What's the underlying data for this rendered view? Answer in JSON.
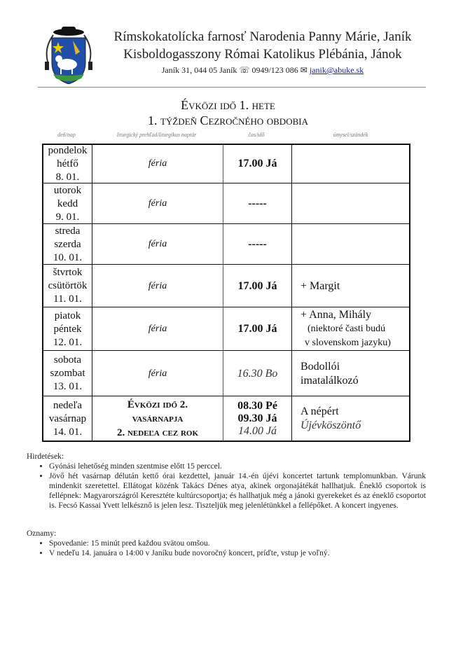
{
  "header": {
    "line1": "Rímskokatolícka farnosť Narodenia Panny Márie, Janík",
    "line2": "Kisboldogasszony Római Katolikus Plébánia, Jánok",
    "address": "Janík 31, 044 05 Janík",
    "phone_icon": "telephone-icon",
    "phone": "0949/123 086",
    "email_icon": "envelope-icon",
    "email": "janik@abuke.sk"
  },
  "title": {
    "line1": "Évközi idő 1. hete",
    "line2": "1. týždeň Cezročného obdobia"
  },
  "columns": [
    "deň/nap",
    "liturgický prehľad/liturgikus naptár",
    "čas/idő",
    "úmysel/szándék"
  ],
  "rows": [
    {
      "day": [
        "pondelok",
        "hétfő",
        "8. 01."
      ],
      "liturgy": "féria",
      "times": [
        {
          "t": "17.00 Já",
          "style": "bold"
        }
      ],
      "intention": []
    },
    {
      "day": [
        "utorok",
        "kedd",
        "9. 01."
      ],
      "liturgy": "féria",
      "times": [
        {
          "t": "-----",
          "style": "bold"
        }
      ],
      "intention": []
    },
    {
      "day": [
        "streda",
        "szerda",
        "10. 01."
      ],
      "liturgy": "féria",
      "times": [
        {
          "t": "-----",
          "style": "bold"
        }
      ],
      "intention": []
    },
    {
      "day": [
        "štvrtok",
        "csütörtök",
        "11. 01."
      ],
      "liturgy": "féria",
      "times": [
        {
          "t": "17.00 Já",
          "style": "bold"
        }
      ],
      "intention": [
        "+ Margit"
      ]
    },
    {
      "day": [
        "piatok",
        "péntek",
        "12. 01."
      ],
      "liturgy": "féria",
      "times": [
        {
          "t": "17.00 Já",
          "style": "bold"
        }
      ],
      "intention": [
        "+ Anna, Mihály",
        "(niektoré časti budú",
        "v slovenskom jazyku)"
      ]
    },
    {
      "day": [
        "sobota",
        "szombat",
        "13. 01."
      ],
      "liturgy": "féria",
      "times": [
        {
          "t": "16.30 Bo",
          "style": "italic"
        }
      ],
      "intention": [
        "Bodollói",
        "imatalálkozó"
      ]
    },
    {
      "day": [
        "nedeľa",
        "vasárnap",
        "14. 01."
      ],
      "liturgy_lines": [
        "Évközi idő 2.",
        "vasárnapja",
        "2. nedeľa cez rok"
      ],
      "times": [
        {
          "t": "08.30 Pé",
          "style": "bold"
        },
        {
          "t": "09.30 Já",
          "style": "bold"
        },
        {
          "t": "14.00 Já",
          "style": "italic"
        }
      ],
      "intention": [
        "A népért",
        "Újévköszöntő"
      ]
    }
  ],
  "notes_hu": {
    "heading": "Hirdetések:",
    "items": [
      "Gyónási lehetőség minden szentmise előtt 15 perccel.",
      "Jövő hét vasárnap délután kettő órai kezdettel, január 14.-én újévi koncertet tartunk templomunkban. Várunk mindenkit szeretettel. Ellátogat közénk Takács Dénes atya, akinek orgonajátékát hallhatjuk. Éneklő csoportok is fellépnek: Magyarországról Keresztéte kultúrcsoportja; és hallhatjuk még a jánoki gyerekeket és az éneklő csoportot is. Fecsó Kassai Yvett lelkésznő is jelen lesz. Tiszteljük meg jelenlétünkkel a fellépőket. A koncert ingyenes."
    ]
  },
  "notes_sk": {
    "heading": "Oznamy:",
    "items": [
      "Spovedanie: 15 minút pred každou svätou omšou.",
      "V nedeľu 14. januára o 14:00 v Janíku bude novoročný koncert, príďte, vstup je voľný."
    ]
  }
}
